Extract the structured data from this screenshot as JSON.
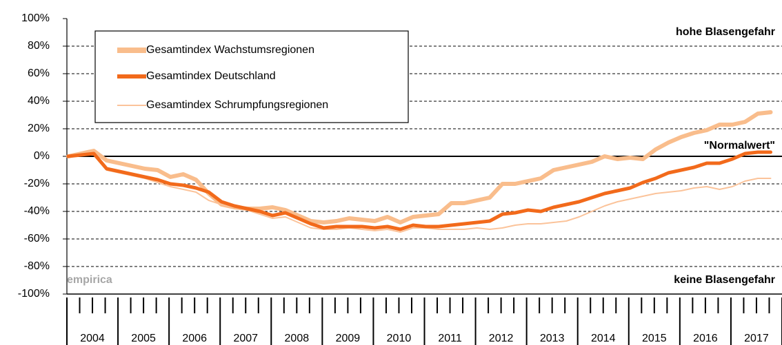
{
  "chart_data": {
    "type": "line",
    "years": [
      "2004",
      "2005",
      "2006",
      "2007",
      "2008",
      "2009",
      "2010",
      "2011",
      "2012",
      "2013",
      "2014",
      "2015",
      "2016",
      "2017"
    ],
    "series": [
      {
        "name": "Gesamtindex Wachstumsregionen",
        "color": "#f9bd8c",
        "values": [
          0,
          2,
          4,
          -3,
          -5,
          -7,
          -9,
          -10,
          -15,
          -13,
          -17,
          -27,
          -35,
          -37,
          -38,
          -38,
          -37,
          -39,
          -43,
          -47,
          -48,
          -47,
          -45,
          -46,
          -47,
          -44,
          -48,
          -44,
          -43,
          -42,
          -34,
          -34,
          -32,
          -30,
          -20,
          -20,
          -18,
          -16,
          -10,
          -8,
          -6,
          -4,
          0,
          -2,
          -1,
          -2,
          5,
          10,
          14,
          17,
          19,
          23,
          23,
          25,
          31,
          32
        ]
      },
      {
        "name": "Gesamtindex Deutschland",
        "color": "#f26a1b",
        "values": [
          0,
          1,
          2,
          -9,
          -11,
          -13,
          -15,
          -17,
          -20,
          -21,
          -23,
          -26,
          -33,
          -36,
          -38,
          -40,
          -43,
          -41,
          -45,
          -49,
          -52,
          -51,
          -51,
          -51,
          -52,
          -51,
          -53,
          -50,
          -51,
          -51,
          -50,
          -49,
          -48,
          -47,
          -42,
          -41,
          -39,
          -40,
          -37,
          -35,
          -33,
          -30,
          -27,
          -25,
          -23,
          -19,
          -16,
          -12,
          -10,
          -8,
          -5,
          -5,
          -2,
          2,
          3,
          3
        ]
      },
      {
        "name": "Gesamtindex Schrumpfungsregionen",
        "color": "#fbc39a",
        "values": [
          0,
          1,
          3,
          -10,
          -12,
          -14,
          -16,
          -19,
          -22,
          -24,
          -26,
          -32,
          -35,
          -37,
          -39,
          -42,
          -45,
          -44,
          -48,
          -52,
          -53,
          -53,
          -52,
          -53,
          -54,
          -53,
          -55,
          -52,
          -52,
          -53,
          -53,
          -53,
          -52,
          -53,
          -52,
          -50,
          -49,
          -49,
          -48,
          -47,
          -44,
          -40,
          -36,
          -33,
          -31,
          -29,
          -27,
          -26,
          -25,
          -23,
          -22,
          -24,
          -22,
          -18,
          -16,
          -16
        ]
      }
    ],
    "ylim": [
      -100,
      100
    ],
    "yticks": [
      {
        "value": 100,
        "label": "100%"
      },
      {
        "value": 80,
        "label": "80%"
      },
      {
        "value": 60,
        "label": "60%"
      },
      {
        "value": 40,
        "label": "40%"
      },
      {
        "value": 20,
        "label": "20%"
      },
      {
        "value": 0,
        "label": "0%"
      },
      {
        "value": -20,
        "label": "-20%"
      },
      {
        "value": -40,
        "label": "-40%"
      },
      {
        "value": -60,
        "label": "-60%"
      },
      {
        "value": -80,
        "label": "-80%"
      },
      {
        "value": -100,
        "label": "-100%"
      }
    ],
    "grid": true,
    "annotations": [
      "hohe Blasengefahr",
      "\"Normalwert\"",
      "keine Blasengefahr",
      "empirica"
    ]
  }
}
